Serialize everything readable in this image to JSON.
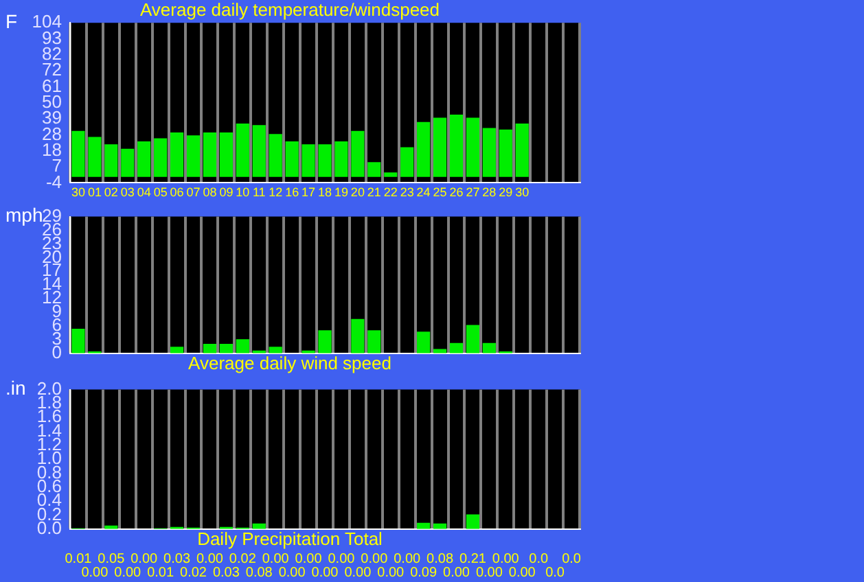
{
  "chart_data": [
    {
      "type": "bar",
      "title": "Average daily temperature/windspeed",
      "ylabel": "F",
      "categories": [
        "30",
        "01",
        "02",
        "03",
        "04",
        "05",
        "06",
        "07",
        "08",
        "09",
        "10",
        "11",
        "12",
        "16",
        "17",
        "18",
        "19",
        "20",
        "21",
        "22",
        "23",
        "24",
        "25",
        "26",
        "27",
        "28",
        "29",
        "30",
        null,
        null,
        null
      ],
      "series": [
        {
          "color": "#00ee00",
          "values": [
            31,
            27,
            22,
            19,
            24,
            26,
            30,
            28,
            30,
            30,
            36,
            35,
            29,
            24,
            22,
            22,
            24,
            31,
            10,
            3,
            20,
            37,
            40,
            42,
            40,
            33,
            32,
            36,
            null,
            null,
            null
          ]
        }
      ],
      "ylim": [
        -4,
        104
      ],
      "yticks": [
        -4,
        {
          "value": 6.8,
          "label": "7"
        },
        {
          "value": 17.6,
          "label": "18"
        },
        {
          "value": 28.4,
          "label": "28"
        },
        {
          "value": 39.2,
          "label": "39"
        },
        50,
        {
          "value": 60.8,
          "label": "61"
        },
        {
          "value": 71.6,
          "label": "72"
        },
        {
          "value": 82.4,
          "label": "82"
        },
        {
          "value": 93.2,
          "label": "93"
        },
        104
      ],
      "grid": "x",
      "legend": false
    },
    {
      "type": "bar",
      "title": "Average daily wind speed",
      "ylabel": "mph",
      "categories": [
        "30",
        "01",
        "02",
        "03",
        "04",
        "05",
        "06",
        "07",
        "08",
        "09",
        "10",
        "11",
        "12",
        "16",
        "17",
        "18",
        "19",
        "20",
        "21",
        "22",
        "23",
        "24",
        "25",
        "26",
        "27",
        "28",
        "29",
        "30",
        null,
        null,
        null
      ],
      "series": [
        {
          "color": "#00ee00",
          "values": [
            5.2,
            0.4,
            0,
            0,
            0,
            0,
            1.4,
            0,
            2.0,
            2.0,
            3.0,
            0.6,
            1.4,
            0,
            0.6,
            4.9,
            0,
            7.3,
            4.9,
            0,
            0,
            4.6,
            0.9,
            2.2,
            6.0,
            2.2,
            0.4,
            0,
            null,
            null,
            null
          ]
        }
      ],
      "ylim": [
        0,
        29
      ],
      "yticks": [
        0,
        {
          "value": 2.9,
          "label": "3"
        },
        {
          "value": 5.8,
          "label": "6"
        },
        {
          "value": 8.7,
          "label": "9"
        },
        {
          "value": 11.6,
          "label": "12"
        },
        {
          "value": 14.5,
          "label": "14"
        },
        {
          "value": 17.4,
          "label": "17"
        },
        {
          "value": 20.3,
          "label": "20"
        },
        {
          "value": 23.2,
          "label": "23"
        },
        {
          "value": 26.1,
          "label": "26"
        },
        29
      ],
      "grid": "x",
      "legend": false,
      "tick_labels": "y"
    },
    {
      "type": "bar",
      "title": "Daily Precipitation Total",
      "ylabel": ".in",
      "categories": [
        "30",
        "01",
        "02",
        "03",
        "04",
        "05",
        "06",
        "07",
        "08",
        "09",
        "10",
        "11",
        "12",
        "16",
        "17",
        "18",
        "19",
        "20",
        "21",
        "22",
        "23",
        "24",
        "25",
        "26",
        "27",
        "28",
        "29",
        "30",
        null,
        null,
        null
      ],
      "series": [
        {
          "color": "#00ee00",
          "values": [
            0.01,
            0,
            0.05,
            0,
            0,
            0.01,
            0.03,
            0.02,
            0,
            0.03,
            0.02,
            0.08,
            0,
            0,
            0,
            0,
            0,
            0,
            0,
            0,
            0,
            0.09,
            0.08,
            0,
            0.21,
            0,
            0,
            0,
            0,
            0,
            0
          ],
          "value_labels": [
            "0.01",
            "0.00",
            "0.05",
            "0.00",
            "0.00",
            "0.01",
            "0.03",
            "0.02",
            "0.00",
            "0.03",
            "0.02",
            "0.08",
            "0.00",
            "0.00",
            "0.00",
            "0.00",
            "0.00",
            "0.00",
            "0.00",
            "0.00",
            "0.00",
            "0.09",
            "0.08",
            "0.00",
            "0.21",
            "0.00",
            "0.00",
            "0.00",
            "0.0",
            "0.0",
            "0.0"
          ]
        }
      ],
      "ylim": [
        0,
        2.0
      ],
      "yticks": [
        {
          "value": 0,
          "label": "0.0"
        },
        {
          "value": 0.2,
          "label": "0.2"
        },
        {
          "value": 0.4,
          "label": "0.4"
        },
        {
          "value": 0.6,
          "label": "0.6"
        },
        {
          "value": 0.8,
          "label": "0.8"
        },
        {
          "value": 1,
          "label": "1.0"
        },
        {
          "value": 1.2,
          "label": "1.2"
        },
        {
          "value": 1.4,
          "label": "1.4"
        },
        {
          "value": 1.6,
          "label": "1.6"
        },
        {
          "value": 1.8,
          "label": "1.8"
        },
        {
          "value": 2,
          "label": "2.0"
        }
      ],
      "grid": "x",
      "legend": false,
      "tick_labels": "y"
    }
  ]
}
